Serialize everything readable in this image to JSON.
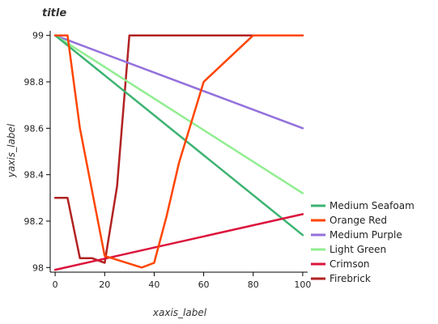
{
  "chart_data": {
    "type": "line",
    "title": "title",
    "xlabel": "xaxis_label",
    "ylabel": "yaxis_label",
    "xlim": [
      -2,
      102
    ],
    "ylim": [
      97.98,
      99.02
    ],
    "xticks": [
      0,
      20,
      40,
      60,
      80,
      100
    ],
    "yticks": [
      98.0,
      98.2,
      98.4,
      98.6,
      98.8,
      99.0
    ],
    "xtick_labels": [
      "0",
      "20",
      "40",
      "60",
      "80",
      "100"
    ],
    "ytick_labels": [
      "98",
      "98.2",
      "98.4",
      "98.6",
      "98.8",
      "99"
    ],
    "grid": false,
    "legend_position": "right",
    "series": [
      {
        "name": "Firebrick",
        "color": "#b22222",
        "points": [
          [
            0,
            98.3
          ],
          [
            5,
            98.3
          ],
          [
            10,
            98.04
          ],
          [
            15,
            98.04
          ],
          [
            20,
            98.02
          ],
          [
            25,
            98.35
          ],
          [
            30,
            99.0
          ],
          [
            100,
            99.0
          ]
        ]
      },
      {
        "name": "Medium Purple",
        "color": "#9370db",
        "points": [
          [
            0,
            99.0
          ],
          [
            100,
            98.6
          ]
        ]
      },
      {
        "name": "Light Green",
        "color": "#90ee90",
        "points": [
          [
            0,
            99.0
          ],
          [
            100,
            98.32
          ]
        ]
      },
      {
        "name": "Medium Seafoam",
        "color": "#3cb371",
        "points": [
          [
            0,
            99.0
          ],
          [
            100,
            98.14
          ]
        ]
      },
      {
        "name": "Crimson",
        "color": "#dc143c",
        "points": [
          [
            0,
            97.99
          ],
          [
            100,
            98.23
          ]
        ]
      },
      {
        "name": "Orange Red",
        "color": "#ff4500",
        "points": [
          [
            0,
            99.0
          ],
          [
            5,
            99.0
          ],
          [
            10,
            98.6
          ],
          [
            20,
            98.05
          ],
          [
            35,
            98.0
          ],
          [
            40,
            98.02
          ],
          [
            45,
            98.22
          ],
          [
            50,
            98.45
          ],
          [
            60,
            98.8
          ],
          [
            80,
            99.0
          ],
          [
            100,
            99.0
          ]
        ]
      }
    ]
  },
  "legend": {
    "items": [
      {
        "label": "Medium Seafoam",
        "color": "#3cb371"
      },
      {
        "label": "Orange Red",
        "color": "#ff4500"
      },
      {
        "label": "Medium Purple",
        "color": "#9370db"
      },
      {
        "label": "Light Green",
        "color": "#90ee90"
      },
      {
        "label": "Crimson",
        "color": "#dc143c"
      },
      {
        "label": "Firebrick",
        "color": "#b22222"
      }
    ]
  }
}
